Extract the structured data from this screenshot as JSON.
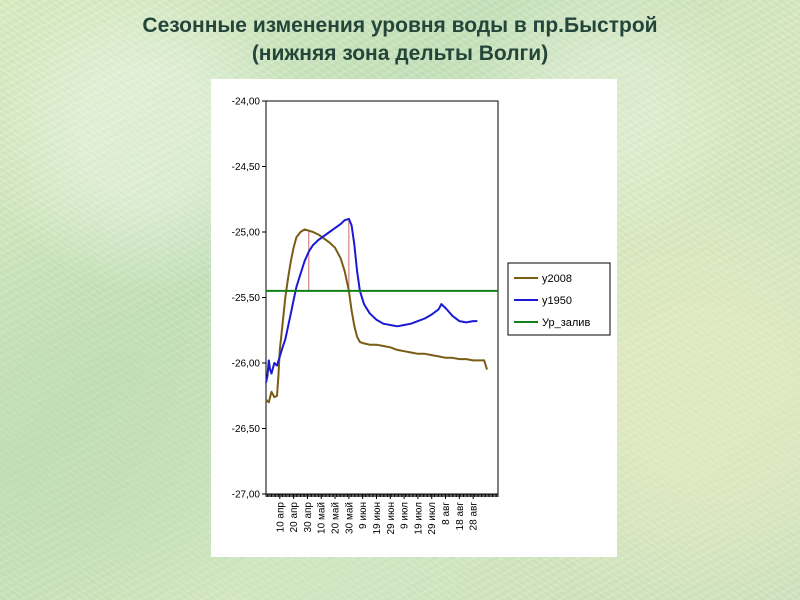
{
  "slide": {
    "title_line1": "Сезонные изменения уровня воды в пр.Быстрой",
    "title_line2": "(нижняя зона дельты Волги)"
  },
  "chart_data": {
    "type": "line",
    "ylim": [
      -27.0,
      -24.0
    ],
    "yticks": [
      "-24,00",
      "-24,50",
      "-25,00",
      "-25,50",
      "-26,00",
      "-26,50",
      "-27,00"
    ],
    "ytick_values": [
      -24.0,
      -24.5,
      -25.0,
      -25.5,
      -26.0,
      -26.5,
      -27.0
    ],
    "x_domain_days": 168,
    "xticks": [
      "10 апр",
      "20 апр",
      "30 апр",
      "10 май",
      "20 май",
      "30 май",
      "9 июн",
      "19 июн",
      "29 июн",
      "9 июл",
      "19 июл",
      "29 июл",
      "8 авг",
      "18 авг",
      "28 авг"
    ],
    "xtick_days": [
      10,
      20,
      30,
      40,
      50,
      60,
      70,
      80,
      90,
      100,
      110,
      120,
      130,
      140,
      150
    ],
    "legend_position": "right",
    "series": [
      {
        "name": "у2008",
        "color": "#7a5c14",
        "points": [
          [
            0,
            -26.28
          ],
          [
            2,
            -26.3
          ],
          [
            4,
            -26.22
          ],
          [
            6,
            -26.26
          ],
          [
            8,
            -26.25
          ],
          [
            9,
            -26.1
          ],
          [
            10,
            -25.9
          ],
          [
            12,
            -25.7
          ],
          [
            14,
            -25.5
          ],
          [
            16,
            -25.35
          ],
          [
            18,
            -25.22
          ],
          [
            20,
            -25.12
          ],
          [
            22,
            -25.04
          ],
          [
            25,
            -25.0
          ],
          [
            28,
            -24.98
          ],
          [
            31,
            -24.99
          ],
          [
            34,
            -25.0
          ],
          [
            38,
            -25.02
          ],
          [
            42,
            -25.05
          ],
          [
            46,
            -25.08
          ],
          [
            50,
            -25.12
          ],
          [
            54,
            -25.2
          ],
          [
            57,
            -25.3
          ],
          [
            60,
            -25.45
          ],
          [
            62,
            -25.6
          ],
          [
            64,
            -25.72
          ],
          [
            66,
            -25.8
          ],
          [
            68,
            -25.84
          ],
          [
            71,
            -25.85
          ],
          [
            75,
            -25.86
          ],
          [
            80,
            -25.86
          ],
          [
            85,
            -25.87
          ],
          [
            90,
            -25.88
          ],
          [
            95,
            -25.9
          ],
          [
            100,
            -25.91
          ],
          [
            105,
            -25.92
          ],
          [
            110,
            -25.93
          ],
          [
            115,
            -25.93
          ],
          [
            120,
            -25.94
          ],
          [
            125,
            -25.95
          ],
          [
            130,
            -25.96
          ],
          [
            135,
            -25.96
          ],
          [
            140,
            -25.97
          ],
          [
            145,
            -25.97
          ],
          [
            150,
            -25.98
          ],
          [
            155,
            -25.98
          ],
          [
            158,
            -25.98
          ],
          [
            160,
            -26.05
          ]
        ]
      },
      {
        "name": "у1950",
        "color": "#1a1ad6",
        "points": [
          [
            0,
            -26.15
          ],
          [
            1,
            -26.1
          ],
          [
            2,
            -25.98
          ],
          [
            3,
            -26.05
          ],
          [
            4,
            -26.08
          ],
          [
            6,
            -26.0
          ],
          [
            8,
            -26.02
          ],
          [
            10,
            -25.95
          ],
          [
            12,
            -25.88
          ],
          [
            14,
            -25.82
          ],
          [
            16,
            -25.72
          ],
          [
            18,
            -25.62
          ],
          [
            20,
            -25.52
          ],
          [
            22,
            -25.42
          ],
          [
            25,
            -25.32
          ],
          [
            28,
            -25.22
          ],
          [
            31,
            -25.15
          ],
          [
            34,
            -25.1
          ],
          [
            38,
            -25.06
          ],
          [
            42,
            -25.03
          ],
          [
            46,
            -25.0
          ],
          [
            50,
            -24.97
          ],
          [
            54,
            -24.94
          ],
          [
            57,
            -24.91
          ],
          [
            60,
            -24.9
          ],
          [
            62,
            -24.95
          ],
          [
            64,
            -25.1
          ],
          [
            66,
            -25.3
          ],
          [
            68,
            -25.45
          ],
          [
            71,
            -25.55
          ],
          [
            75,
            -25.62
          ],
          [
            80,
            -25.67
          ],
          [
            85,
            -25.7
          ],
          [
            90,
            -25.71
          ],
          [
            95,
            -25.72
          ],
          [
            100,
            -25.71
          ],
          [
            105,
            -25.7
          ],
          [
            110,
            -25.68
          ],
          [
            115,
            -25.66
          ],
          [
            120,
            -25.63
          ],
          [
            125,
            -25.59
          ],
          [
            127,
            -25.55
          ],
          [
            130,
            -25.58
          ],
          [
            135,
            -25.64
          ],
          [
            140,
            -25.68
          ],
          [
            145,
            -25.69
          ],
          [
            150,
            -25.68
          ],
          [
            153,
            -25.68
          ]
        ]
      },
      {
        "name": "Ур_залив",
        "color": "#13801a",
        "points": [
          [
            0,
            -25.45
          ],
          [
            168,
            -25.45
          ]
        ]
      }
    ],
    "markers": [
      {
        "color": "#c8686e",
        "x": 31,
        "y_top": -24.99,
        "y_bottom": -25.45
      },
      {
        "color": "#c8686e",
        "x": 60,
        "y_top": -24.9,
        "y_bottom": -25.45
      }
    ]
  }
}
